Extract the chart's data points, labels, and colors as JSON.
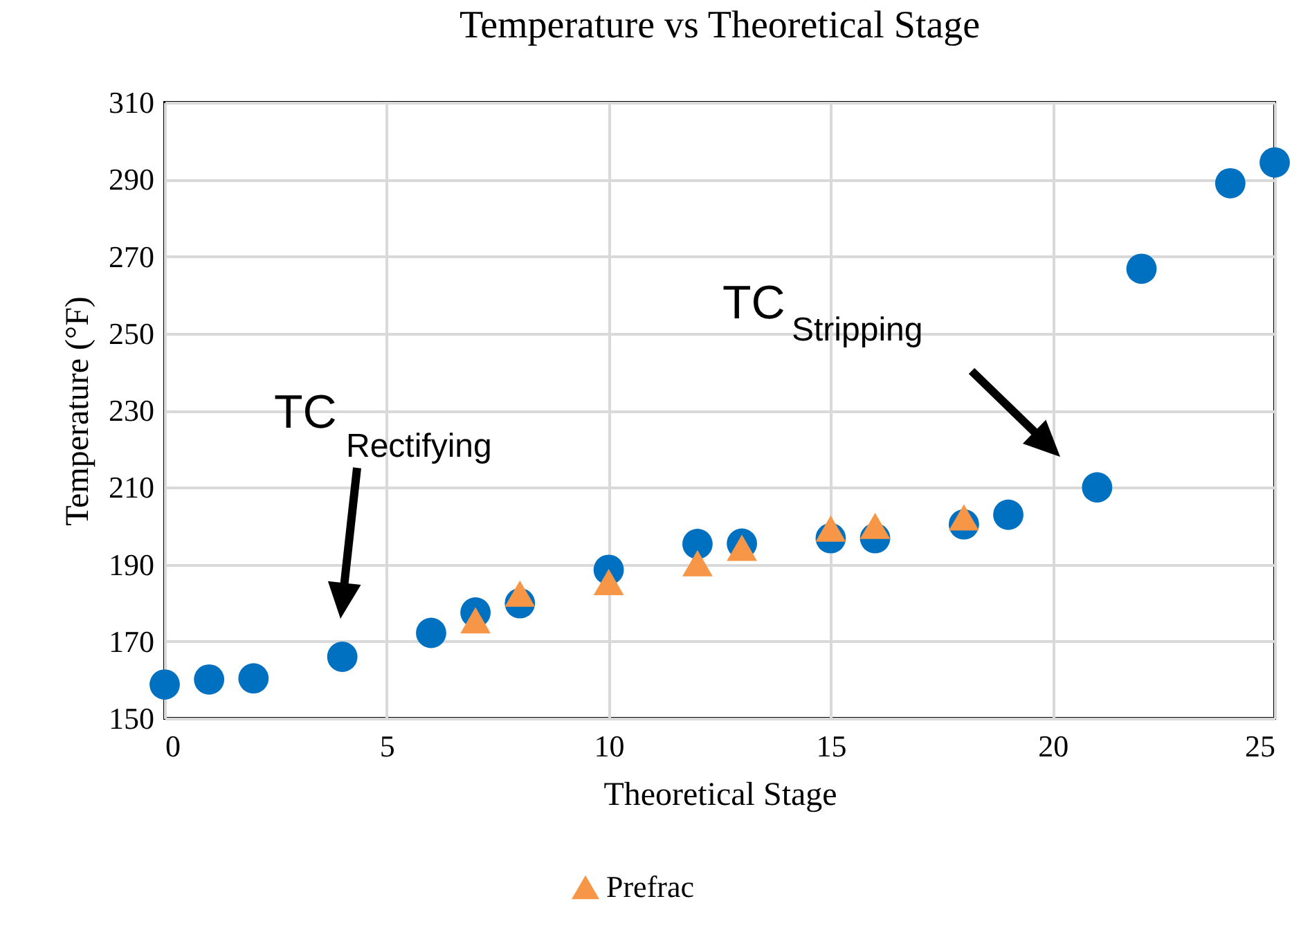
{
  "chart_data": {
    "type": "scatter",
    "title": "Temperature vs Theoretical Stage",
    "xlabel": "Theoretical Stage",
    "ylabel": "Temperature (°F)",
    "xlim": [
      0,
      25
    ],
    "xticks": [
      0,
      5,
      10,
      15,
      20,
      25
    ],
    "ylim": [
      150,
      310
    ],
    "yticks": [
      150,
      170,
      190,
      210,
      230,
      250,
      270,
      290,
      310
    ],
    "grid": true,
    "legend": "bottom",
    "series": [
      {
        "color": "#0070c0",
        "marker": "circle",
        "x": [
          0,
          1,
          2,
          4,
          6,
          7,
          8,
          10,
          12,
          13,
          15,
          16,
          18,
          19,
          21,
          22,
          24,
          25
        ],
        "values": [
          158.8,
          160.1,
          160.4,
          166,
          172.2,
          177.5,
          179.9,
          188.6,
          195.3,
          195.4,
          196.8,
          196.8,
          200.4,
          202.9,
          210,
          266.8,
          289,
          294.4
        ]
      },
      {
        "name": "Prefrac",
        "color": "#f79646",
        "marker": "triangle",
        "x": [
          7,
          8,
          10,
          12,
          13,
          15,
          16,
          18
        ],
        "values": [
          175.5,
          182.4,
          185.4,
          190.3,
          194.3,
          199.3,
          200,
          202.2
        ]
      }
    ],
    "annotations": [
      "TC$_{Rectifying}$",
      "TC$_{Stripping}$"
    ]
  }
}
